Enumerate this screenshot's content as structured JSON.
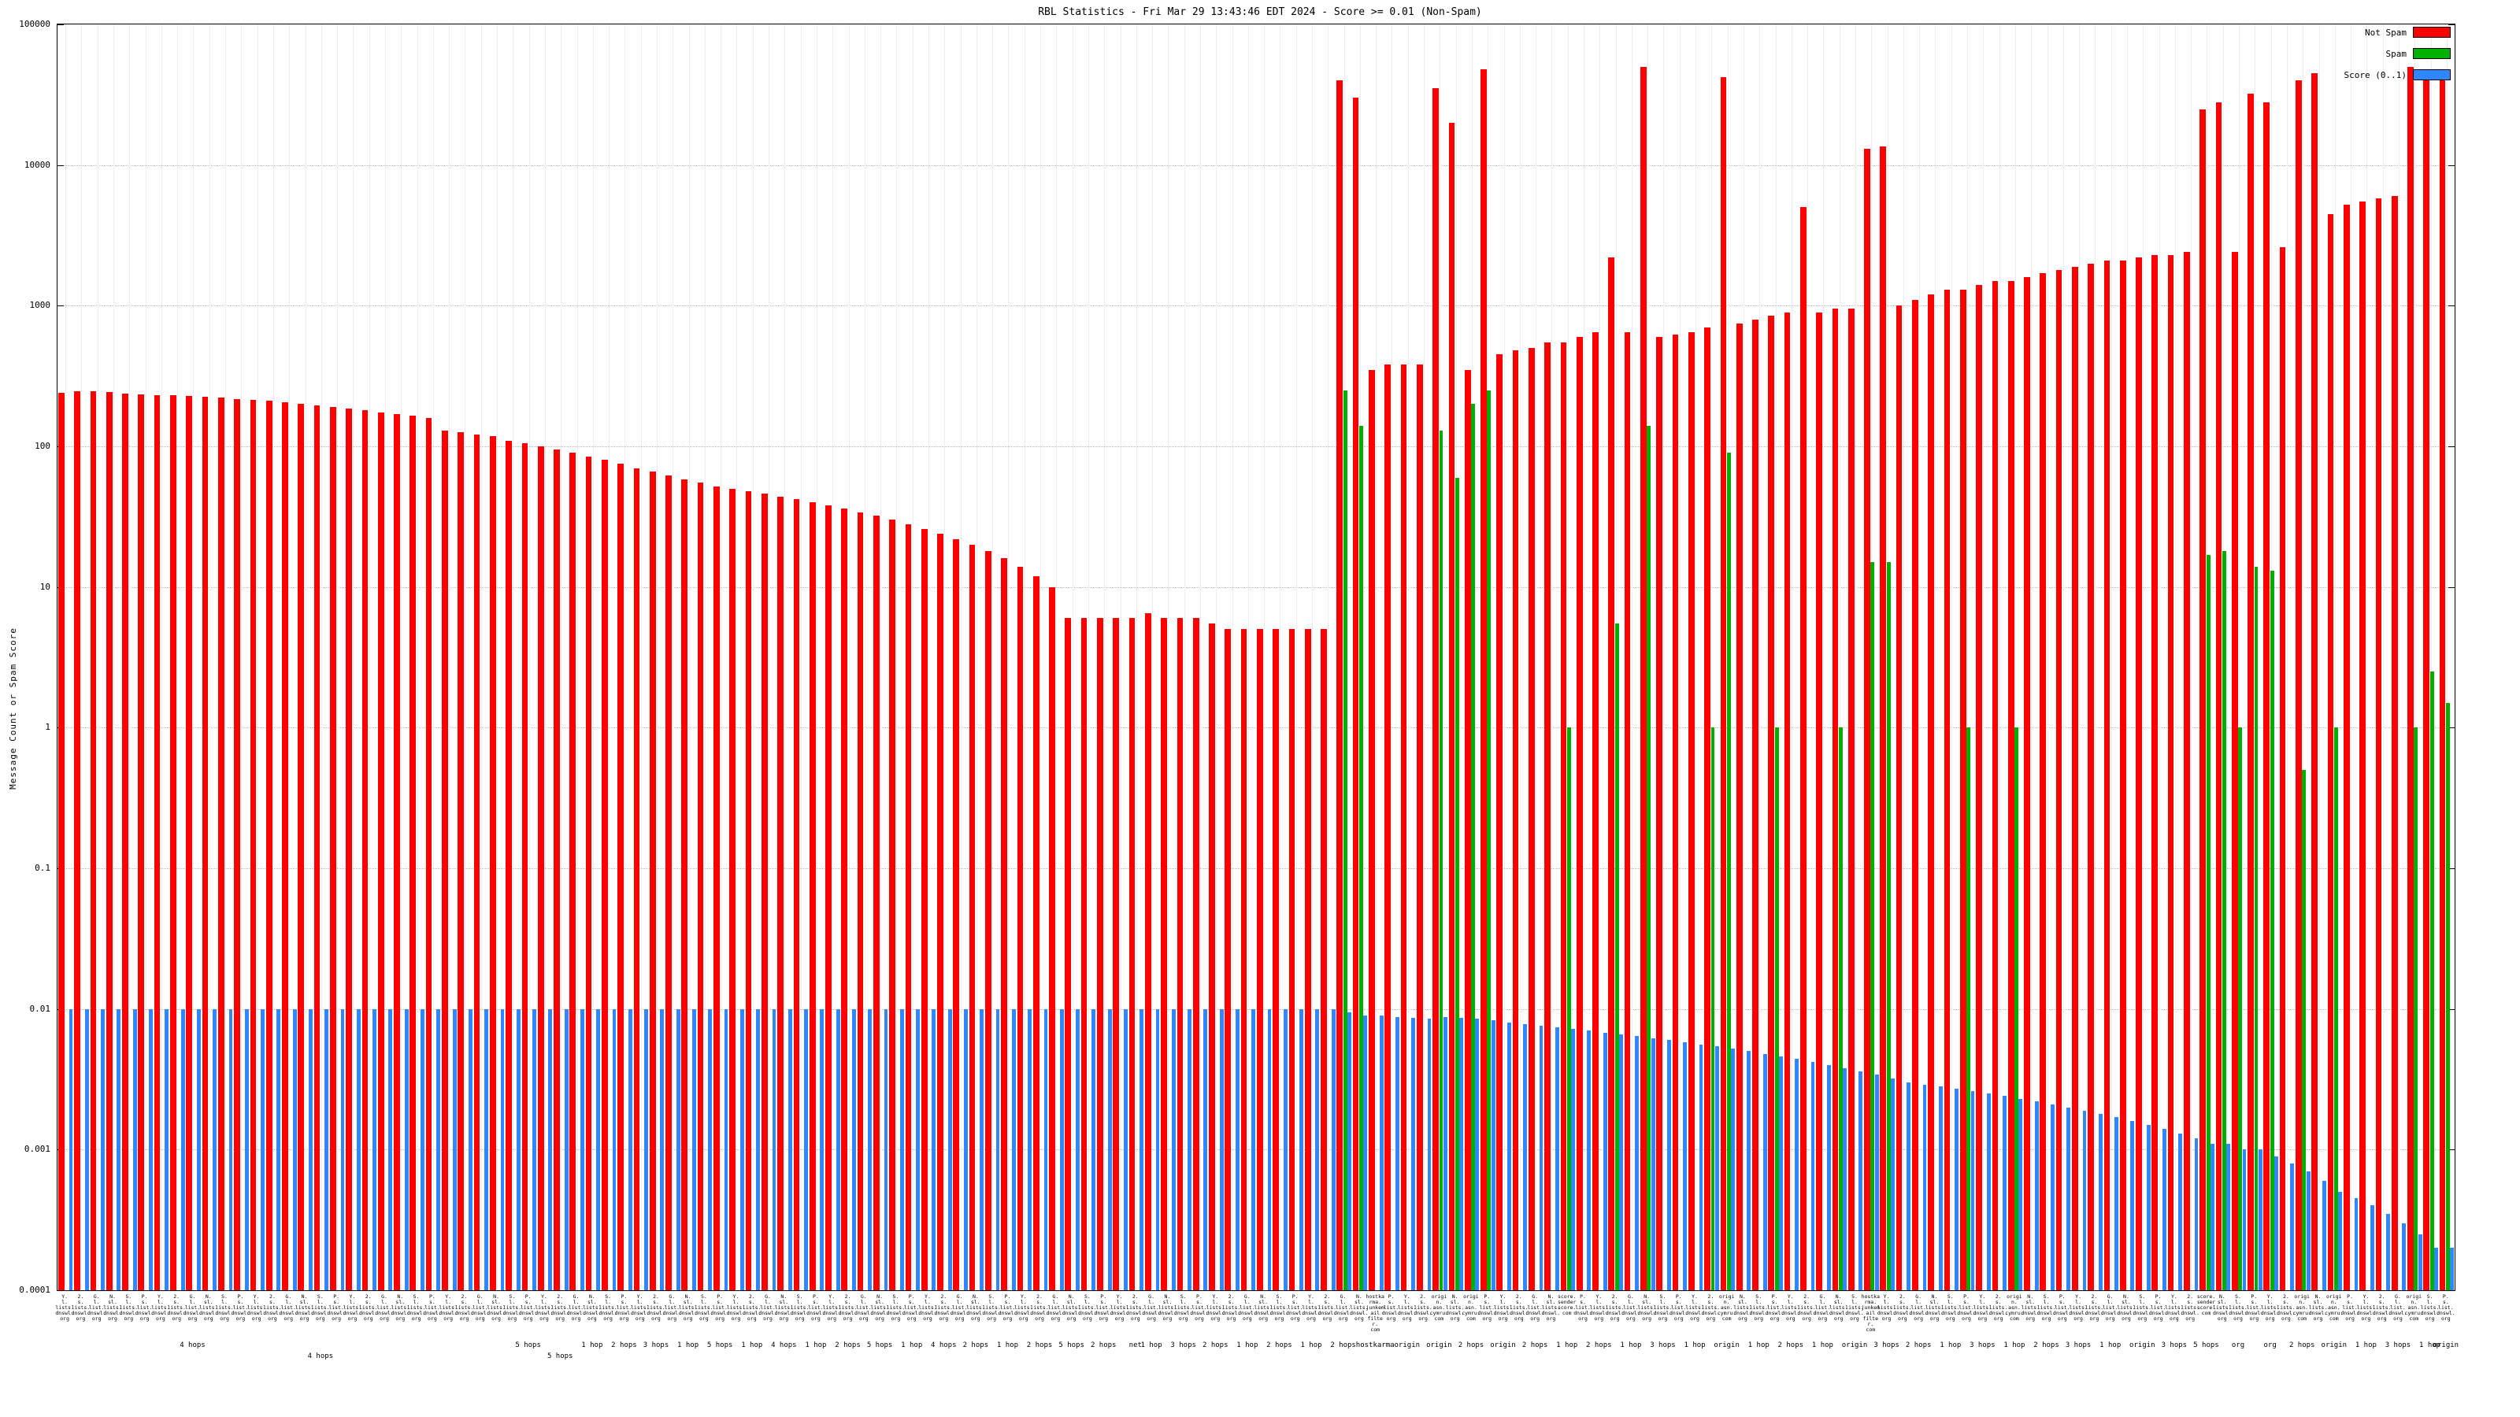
{
  "chart_data": {
    "type": "bar",
    "title": "RBL Statistics - Fri Mar 29 13:43:46 EDT 2024 - Score >= 0.01 (Non-Spam)",
    "ylabel": "Message Count or Spam Score",
    "yscale": "log",
    "ylim": [
      0.0001,
      100000
    ],
    "yticks": [
      100000,
      10000,
      1000,
      100,
      10,
      1,
      0.1,
      0.01,
      0.001,
      0.0001
    ],
    "grid": true,
    "legend_position": "top-right",
    "legend": [
      {
        "name": "Not Spam",
        "color": "#ff0000"
      },
      {
        "name": "Spam",
        "color": "#00b000"
      },
      {
        "name": "Score (0..1)",
        "color": "#2f86ff"
      }
    ],
    "categories": [
      "Y. l. lists. dnswl. org",
      "2. s. lists. dnswl. org",
      "G. l. list. dnswl. org",
      "N. sl. lists. dnswl. org",
      "S. l. lists. dnswl. org",
      "P. s. list. dnswl. org",
      "Y. l. lists. dnswl. org",
      "2. s. lists. dnswl. org",
      "G. l. list. dnswl. org",
      "N. sl. lists. dnswl. org",
      "S. l. lists. dnswl. org",
      "P. s. list. dnswl. org",
      "Y. l. lists. dnswl. org",
      "2. s. lists. dnswl. org",
      "G. l. list. dnswl. org",
      "N. sl. lists. dnswl. org",
      "S. l. lists. dnswl. org",
      "P. s. list. dnswl. org",
      "Y. l. lists. dnswl. org",
      "2. s. lists. dnswl. org",
      "G. l. list. dnswl. org",
      "N. sl. lists. dnswl. org",
      "S. l. lists. dnswl. org",
      "P. s. list. dnswl. org",
      "Y. l. lists. dnswl. org",
      "2. s. lists. dnswl. org",
      "G. l. list. dnswl. org",
      "N. sl. lists. dnswl. org",
      "S. l. lists. dnswl. org",
      "P. s. list. dnswl. org",
      "Y. l. lists. dnswl. org",
      "2. s. lists. dnswl. org",
      "G. l. list. dnswl. org",
      "N. sl. lists. dnswl. org",
      "S. l. lists. dnswl. org",
      "P. s. list. dnswl. org",
      "Y. l. lists. dnswl. org",
      "2. s. lists. dnswl. org",
      "G. l. list. dnswl. org",
      "N. sl. lists. dnswl. org",
      "S. l. lists. dnswl. org",
      "P. s. list. dnswl. org",
      "Y. l. lists. dnswl. org",
      "2. s. lists. dnswl. org",
      "G. l. list. dnswl. org",
      "N. sl. lists. dnswl. org",
      "S. l. lists. dnswl. org",
      "P. s. list. dnswl. org",
      "Y. l. lists. dnswl. org",
      "2. s. lists. dnswl. org",
      "G. l. list. dnswl. org",
      "N. sl. lists. dnswl. org",
      "S. l. lists. dnswl. org",
      "P. s. list. dnswl. org",
      "Y. l. lists. dnswl. org",
      "2. s. lists. dnswl. org",
      "G. l. list. dnswl. org",
      "N. sl. lists. dnswl. org",
      "S. l. lists. dnswl. org",
      "P. s. list. dnswl. org",
      "Y. l. lists. dnswl. org",
      "2. s. lists. dnswl. org",
      "G. l. list. dnswl. org",
      "N. sl. lists. dnswl. org",
      "S. l. lists. dnswl. org",
      "P. s. list. dnswl. org",
      "Y. l. lists. dnswl. org",
      "2. s. lists. dnswl. org",
      "G. l. list. dnswl. org",
      "N. sl. lists. dnswl. org",
      "S. l. lists. dnswl. org",
      "P. s. list. dnswl. org",
      "Y. l. lists. dnswl. org",
      "2. s. lists. dnswl. org",
      "G. l. list. dnswl. org",
      "N. sl. lists. dnswl. org",
      "S. l. lists. dnswl. org",
      "P. s. list. dnswl. org",
      "Y. l. lists. dnswl. org",
      "2. s. lists. dnswl. org",
      "G. l. list. dnswl. org",
      "N. sl. lists. dnswl. org",
      "hostkarma. junkemail filter. com",
      "P. s. list. dnswl. org",
      "Y. l. lists. dnswl. org",
      "2. s. lists. dnswl. org",
      "origin. asn. cymru. com",
      "N. sl. lists. dnswl. org",
      "origin. asn. cymru. com",
      "P. s. list. dnswl. org",
      "Y. l. lists. dnswl. org",
      "2. s. lists. dnswl. org",
      "G. l. list. dnswl. org",
      "N. sl. lists. dnswl. org",
      "score. sender score. com",
      "P. s. list. dnswl. org",
      "Y. l. lists. dnswl. org",
      "2. s. lists. dnswl. org",
      "G. l. list. dnswl. org",
      "N. sl. lists. dnswl. org",
      "S. l. lists. dnswl. org",
      "P. s. list. dnswl. org",
      "Y. l. lists. dnswl. org",
      "2. s. lists. dnswl. org",
      "origin. asn. cymru. com",
      "N. sl. lists. dnswl. org",
      "S. l. lists. dnswl. org",
      "P. s. list. dnswl. org",
      "Y. l. lists. dnswl. org",
      "2. s. lists. dnswl. org",
      "G. l. list. dnswl. org",
      "N. sl. lists. dnswl. org",
      "S. l. lists. dnswl. org",
      "hostkarma. junkemail filter. com",
      "Y. l. lists. dnswl. org",
      "2. s. lists. dnswl. org",
      "G. l. list. dnswl. org",
      "N. sl. lists. dnswl. org",
      "S. l. lists. dnswl. org",
      "P. s. list. dnswl. org",
      "Y. l. lists. dnswl. org",
      "2. s. lists. dnswl. org",
      "origin. asn. cymru. com",
      "N. sl. lists. dnswl. org",
      "S. l. lists. dnswl. org",
      "P. s. list. dnswl. org",
      "Y. l. lists. dnswl. org",
      "2. s. lists. dnswl. org",
      "G. l. list. dnswl. org",
      "N. sl. lists. dnswl. org",
      "S. l. lists. dnswl. org",
      "P. s. list. dnswl. org",
      "Y. l. lists. dnswl. org",
      "2. s. lists. dnswl. org",
      "score. sender score. com",
      "N. sl. lists. dnswl. org",
      "S. l. lists. dnswl. org",
      "P. s. list. dnswl. org",
      "Y. l. lists. dnswl. org",
      "2. s. lists. dnswl. org",
      "origin. asn. cymru. com",
      "N. sl. lists. dnswl. org",
      "origin. asn. cymru. com",
      "P. s. list. dnswl. org",
      "Y. l. lists. dnswl. org",
      "2. s. lists. dnswl. org",
      "G. l. list. dnswl. org",
      "origin. asn. cymru. com",
      "S. l. lists. dnswl. org",
      "P. s. list. dnswl. org"
    ],
    "series": [
      {
        "name": "Not Spam",
        "values": [
          240,
          248,
          245,
          242,
          238,
          235,
          232,
          230,
          228,
          226,
          222,
          218,
          214,
          210,
          205,
          200,
          195,
          190,
          185,
          180,
          175,
          170,
          165,
          160,
          130,
          126,
          122,
          118,
          110,
          105,
          100,
          95,
          90,
          85,
          80,
          75,
          70,
          66,
          62,
          58,
          55,
          52,
          50,
          48,
          46,
          44,
          42,
          40,
          38,
          36,
          34,
          32,
          30,
          28,
          26,
          24,
          22,
          20,
          18,
          16,
          14,
          12,
          10,
          6,
          6,
          6,
          6,
          6,
          6.5,
          6,
          6,
          6,
          5.5,
          5,
          5,
          5,
          5,
          5,
          5,
          5,
          40000,
          30000,
          350,
          380,
          380,
          380,
          35000,
          20000,
          350,
          48000,
          450,
          480,
          500,
          550,
          550,
          600,
          650,
          2200,
          650,
          50000,
          600,
          620,
          650,
          700,
          42000,
          750,
          800,
          850,
          900,
          5000,
          900,
          950,
          950,
          13000,
          13500,
          1000,
          1100,
          1200,
          1300,
          1300,
          1400,
          1500,
          1500,
          1600,
          1700,
          1800,
          1900,
          2000,
          2100,
          2100,
          2200,
          2300,
          2300,
          2400,
          25000,
          28000,
          2400,
          32000,
          28000,
          2600,
          40000,
          45000,
          4500,
          5200,
          5500,
          5800,
          6000,
          50000,
          45000,
          40000
        ]
      },
      {
        "name": "Spam",
        "values": [
          0,
          0,
          0,
          0,
          0,
          0,
          0,
          0,
          0,
          0,
          0,
          0,
          0,
          0,
          0,
          0,
          0,
          0,
          0,
          0,
          0,
          0,
          0,
          0,
          0,
          0,
          0,
          0,
          0,
          0,
          0,
          0,
          0,
          0,
          0,
          0,
          0,
          0,
          0,
          0,
          0,
          0,
          0,
          0,
          0,
          0,
          0,
          0,
          0,
          0,
          0,
          0,
          0,
          0,
          0,
          0,
          0,
          0,
          0,
          0,
          0,
          0,
          0,
          0,
          0,
          0,
          0,
          0,
          0,
          0,
          0,
          0,
          0,
          0,
          0,
          0,
          0,
          0,
          0,
          0,
          250,
          140,
          0,
          0,
          0,
          0,
          130,
          60,
          200,
          250,
          0,
          0,
          0,
          0,
          1,
          0,
          0,
          5.5,
          0,
          140,
          0,
          0,
          0,
          1,
          90,
          0,
          0,
          1,
          0,
          0,
          0,
          1,
          0,
          15,
          15,
          0,
          0,
          0,
          0,
          1,
          0,
          0,
          1,
          0,
          0,
          0,
          0,
          0,
          0,
          0,
          0,
          0,
          0,
          0,
          17,
          18,
          1,
          14,
          13,
          0,
          0.5,
          0,
          1,
          0,
          0,
          0,
          0,
          1,
          2.5,
          1.5
        ]
      },
      {
        "name": "Score (0..1)",
        "values": [
          0.01,
          0.01,
          0.01,
          0.01,
          0.01,
          0.01,
          0.01,
          0.01,
          0.01,
          0.01,
          0.01,
          0.01,
          0.01,
          0.01,
          0.01,
          0.01,
          0.01,
          0.01,
          0.01,
          0.01,
          0.01,
          0.01,
          0.01,
          0.01,
          0.01,
          0.01,
          0.01,
          0.01,
          0.01,
          0.01,
          0.01,
          0.01,
          0.01,
          0.01,
          0.01,
          0.01,
          0.01,
          0.01,
          0.01,
          0.01,
          0.01,
          0.01,
          0.01,
          0.01,
          0.01,
          0.01,
          0.01,
          0.01,
          0.01,
          0.01,
          0.01,
          0.01,
          0.01,
          0.01,
          0.01,
          0.01,
          0.01,
          0.01,
          0.01,
          0.01,
          0.01,
          0.01,
          0.01,
          0.01,
          0.01,
          0.01,
          0.01,
          0.01,
          0.01,
          0.01,
          0.01,
          0.01,
          0.01,
          0.01,
          0.01,
          0.01,
          0.01,
          0.01,
          0.01,
          0.01,
          0.0095,
          0.009,
          0.009,
          0.0088,
          0.0086,
          0.0085,
          0.0088,
          0.0086,
          0.0085,
          0.0083,
          0.008,
          0.0078,
          0.0076,
          0.0074,
          0.0072,
          0.007,
          0.0068,
          0.0066,
          0.0064,
          0.0062,
          0.006,
          0.0058,
          0.0056,
          0.0054,
          0.0052,
          0.005,
          0.0048,
          0.0046,
          0.0044,
          0.0042,
          0.004,
          0.0038,
          0.0036,
          0.0034,
          0.0032,
          0.003,
          0.0029,
          0.0028,
          0.0027,
          0.0026,
          0.0025,
          0.0024,
          0.0023,
          0.0022,
          0.0021,
          0.002,
          0.0019,
          0.0018,
          0.0017,
          0.0016,
          0.0015,
          0.0014,
          0.0013,
          0.0012,
          0.0011,
          0.0011,
          0.001,
          0.001,
          0.0009,
          0.0008,
          0.0007,
          0.0006,
          0.0005,
          0.00045,
          0.0004,
          0.00035,
          0.0003,
          0.00025,
          0.0002,
          0.0002
        ]
      }
    ],
    "x_groups": [
      {
        "i": 8,
        "t": "4 hops"
      },
      {
        "i": 29,
        "t": "5 hops"
      },
      {
        "i": 33,
        "t": "1 hop"
      },
      {
        "i": 35,
        "t": "2 hops"
      },
      {
        "i": 37,
        "t": "3 hops"
      },
      {
        "i": 39,
        "t": "1 hop"
      },
      {
        "i": 41,
        "t": "5 hops"
      },
      {
        "i": 43,
        "t": "1 hop"
      },
      {
        "i": 45,
        "t": "4 hops"
      },
      {
        "i": 47,
        "t": "1 hop"
      },
      {
        "i": 49,
        "t": "2 hops"
      },
      {
        "i": 51,
        "t": "5 hops"
      },
      {
        "i": 53,
        "t": "1 hop"
      },
      {
        "i": 55,
        "t": "4 hops"
      },
      {
        "i": 57,
        "t": "2 hops"
      },
      {
        "i": 59,
        "t": "1 hop"
      },
      {
        "i": 61,
        "t": "2 hops"
      },
      {
        "i": 63,
        "t": "5 hops"
      },
      {
        "i": 65,
        "t": "2 hops"
      },
      {
        "i": 67,
        "t": "net"
      },
      {
        "i": 68,
        "t": "1 hop"
      },
      {
        "i": 70,
        "t": "3 hops"
      },
      {
        "i": 72,
        "t": "2 hops"
      },
      {
        "i": 74,
        "t": "1 hop"
      },
      {
        "i": 76,
        "t": "2 hops"
      },
      {
        "i": 78,
        "t": "1 hop"
      },
      {
        "i": 80,
        "t": "2 hops"
      },
      {
        "i": 82,
        "t": "hostkarma"
      },
      {
        "i": 84,
        "t": "origin"
      },
      {
        "i": 86,
        "t": "origin"
      },
      {
        "i": 88,
        "t": "2 hops"
      },
      {
        "i": 90,
        "t": "origin"
      },
      {
        "i": 92,
        "t": "2 hops"
      },
      {
        "i": 94,
        "t": "1 hop"
      },
      {
        "i": 96,
        "t": "2 hops"
      },
      {
        "i": 98,
        "t": "1 hop"
      },
      {
        "i": 100,
        "t": "3 hops"
      },
      {
        "i": 102,
        "t": "1 hop"
      },
      {
        "i": 104,
        "t": "origin"
      },
      {
        "i": 106,
        "t": "1 hop"
      },
      {
        "i": 108,
        "t": "2 hops"
      },
      {
        "i": 110,
        "t": "1 hop"
      },
      {
        "i": 112,
        "t": "origin"
      },
      {
        "i": 114,
        "t": "3 hops"
      },
      {
        "i": 116,
        "t": "2 hops"
      },
      {
        "i": 118,
        "t": "1 hop"
      },
      {
        "i": 120,
        "t": "3 hops"
      },
      {
        "i": 122,
        "t": "1 hop"
      },
      {
        "i": 124,
        "t": "2 hops"
      },
      {
        "i": 126,
        "t": "3 hops"
      },
      {
        "i": 128,
        "t": "1 hop"
      },
      {
        "i": 130,
        "t": "origin"
      },
      {
        "i": 132,
        "t": "3 hops"
      },
      {
        "i": 134,
        "t": "5 hops"
      },
      {
        "i": 136,
        "t": "org"
      },
      {
        "i": 138,
        "t": "org"
      },
      {
        "i": 140,
        "t": "2 hops"
      },
      {
        "i": 142,
        "t": "origin"
      },
      {
        "i": 144,
        "t": "1 hop"
      },
      {
        "i": 146,
        "t": "3 hops"
      },
      {
        "i": 148,
        "t": "1 hop"
      },
      {
        "i": 149,
        "t": "origin"
      }
    ],
    "x_sub_labels": [
      {
        "i": 16,
        "t": "4 hops"
      },
      {
        "i": 31,
        "t": "5 hops"
      }
    ]
  }
}
